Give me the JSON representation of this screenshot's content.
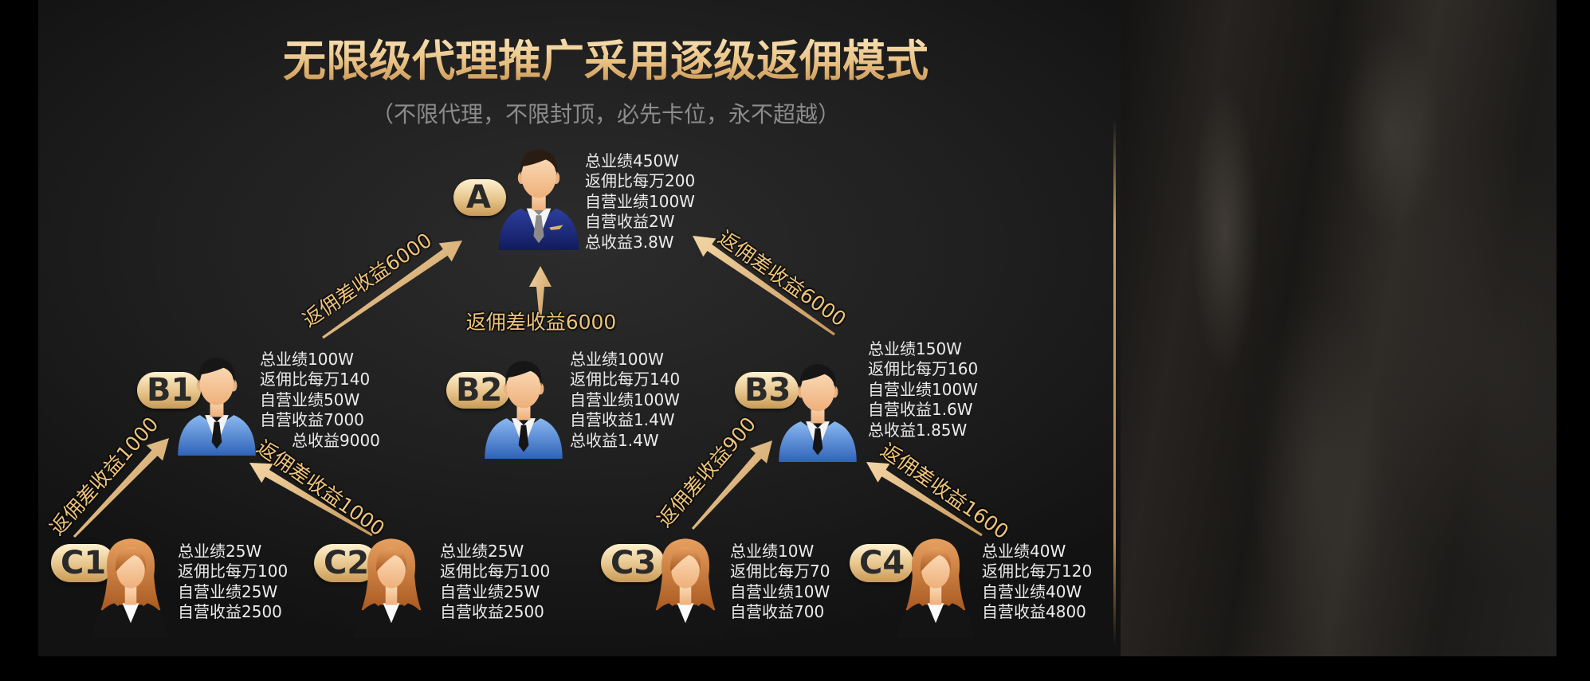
{
  "title": "无限级代理推广采用逐级返佣模式",
  "subtitle": "（不限代理，不限封顶，必先卡位，永不超越）",
  "colors": {
    "gold": "#e6c38c",
    "label": "#efc47a",
    "badge_text": "#2a2a2a",
    "stat_text": "#ececec",
    "subtitle": "#8c8c8c"
  },
  "nodes": {
    "A": {
      "label": "A",
      "icon": "businessman-icon",
      "stats": [
        "总业绩450W",
        "返佣比每万200",
        "自营业绩100W",
        "自营收益2W",
        "总收益3.8W"
      ]
    },
    "B1": {
      "label": "B1",
      "icon": "businessman-icon",
      "stats": [
        "总业绩100W",
        "返佣比每万140",
        "自营业绩50W",
        "自营收益7000",
        "总收益9000"
      ]
    },
    "B2": {
      "label": "B2",
      "icon": "businessman-icon",
      "stats": [
        "总业绩100W",
        "返佣比每万140",
        "自营业绩100W",
        "自营收益1.4W",
        "总收益1.4W"
      ]
    },
    "B3": {
      "label": "B3",
      "icon": "businessman-icon",
      "stats": [
        "总业绩150W",
        "返佣比每万160",
        "自营业绩100W",
        "自营收益1.6W",
        "总收益1.85W"
      ]
    },
    "C1": {
      "label": "C1",
      "icon": "businesswoman-icon",
      "stats": [
        "总业绩25W",
        "返佣比每万100",
        "自营业绩25W",
        "自营收益2500"
      ]
    },
    "C2": {
      "label": "C2",
      "icon": "businesswoman-icon",
      "stats": [
        "总业绩25W",
        "返佣比每万100",
        "自营业绩25W",
        "自营收益2500"
      ]
    },
    "C3": {
      "label": "C3",
      "icon": "businesswoman-icon",
      "stats": [
        "总业绩10W",
        "返佣比每万70",
        "自营业绩10W",
        "自营收益700"
      ]
    },
    "C4": {
      "label": "C4",
      "icon": "businesswoman-icon",
      "stats": [
        "总业绩40W",
        "返佣比每万120",
        "自营业绩40W",
        "自营收益4800"
      ]
    }
  },
  "arrows": {
    "B1_to_A": "返佣差收益6000",
    "B2_to_A": "返佣差收益6000",
    "B3_to_A": "返佣差收益6000",
    "C1_to_B1": "返佣差收益1000",
    "C2_to_B1": "返佣差收益1000",
    "C3_to_B3": "返佣差收益900",
    "C4_to_B3": "返佣差收益1600"
  }
}
